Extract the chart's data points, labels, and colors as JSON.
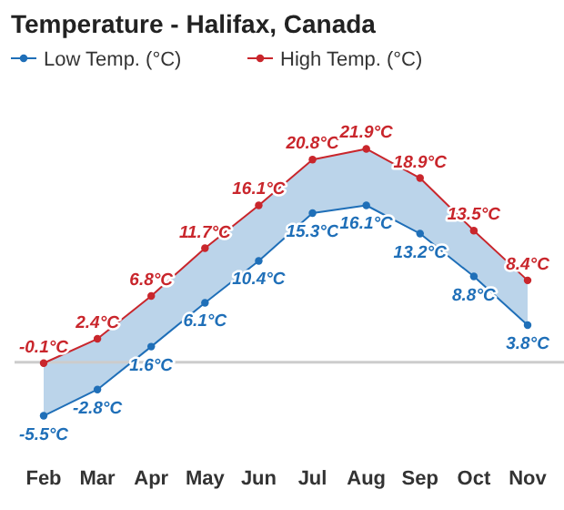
{
  "chart_data": {
    "type": "line",
    "title": "Temperature - Halifax, Canada",
    "categories": [
      "Feb",
      "Mar",
      "Apr",
      "May",
      "Jun",
      "Jul",
      "Aug",
      "Sep",
      "Oct",
      "Nov"
    ],
    "series": [
      {
        "name": "Low Temp. (°C)",
        "color": "#1f6fb8",
        "values": [
          -5.5,
          -2.8,
          1.6,
          6.1,
          10.4,
          15.3,
          16.1,
          13.2,
          8.8,
          3.8
        ],
        "value_labels": [
          "-5.5°C",
          "-2.8°C",
          "1.6°C",
          "6.1°C",
          "10.4°C",
          "15.3°C",
          "16.1°C",
          "13.2°C",
          "8.8°C",
          "3.8°C"
        ]
      },
      {
        "name": "High Temp. (°C)",
        "color": "#c9262c",
        "values": [
          -0.1,
          2.4,
          6.8,
          11.7,
          16.1,
          20.8,
          21.9,
          18.9,
          13.5,
          8.4
        ],
        "value_labels": [
          "-0.1°C",
          "2.4°C",
          "6.8°C",
          "11.7°C",
          "16.1°C",
          "20.8°C",
          "21.9°C",
          "18.9°C",
          "13.5°C",
          "8.4°C"
        ]
      }
    ],
    "ref_lines": [
      {
        "axis": "y",
        "value": 0,
        "color": "#cccccc"
      }
    ],
    "legend": "top left",
    "marker": "circle"
  }
}
